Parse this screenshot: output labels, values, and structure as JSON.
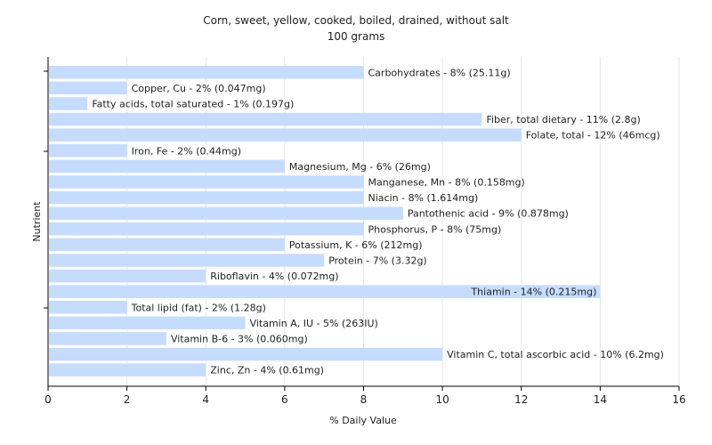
{
  "chart_data": {
    "type": "bar",
    "orientation": "horizontal",
    "title": "Corn, sweet, yellow, cooked, boiled, drained, without salt",
    "subtitle": "100 grams",
    "xlabel": "% Daily Value",
    "ylabel": "Nutrient",
    "xlim": [
      0,
      16
    ],
    "xticks": [
      0,
      2,
      4,
      6,
      8,
      10,
      12,
      14,
      16
    ],
    "grid": true,
    "bar_color": "#c6dcff",
    "categories": [
      "Carbohydrates",
      "Copper, Cu",
      "Fatty acids, total saturated",
      "Fiber, total dietary",
      "Folate, total",
      "Iron, Fe",
      "Magnesium, Mg",
      "Manganese, Mn",
      "Niacin",
      "Pantothenic acid",
      "Phosphorus, P",
      "Potassium, K",
      "Protein",
      "Riboflavin",
      "Thiamin",
      "Total lipid (fat)",
      "Vitamin A, IU",
      "Vitamin B-6",
      "Vitamin C, total ascorbic acid",
      "Zinc, Zn"
    ],
    "values": [
      8,
      2,
      1,
      11,
      12,
      2,
      6,
      8,
      8,
      9,
      8,
      6,
      7,
      4,
      14,
      2,
      5,
      3,
      10,
      4
    ],
    "labels": [
      "Carbohydrates - 8% (25.11g)",
      "Copper, Cu - 2% (0.047mg)",
      "Fatty acids, total saturated - 1% (0.197g)",
      "Fiber, total dietary - 11% (2.8g)",
      "Folate, total - 12% (46mcg)",
      "Iron, Fe - 2% (0.44mg)",
      "Magnesium, Mg - 6% (26mg)",
      "Manganese, Mn - 8% (0.158mg)",
      "Niacin - 8% (1.614mg)",
      "Pantothenic acid - 9% (0.878mg)",
      "Phosphorus, P - 8% (75mg)",
      "Potassium, K - 6% (212mg)",
      "Protein - 7% (3.32g)",
      "Riboflavin - 4% (0.072mg)",
      "Thiamin - 14% (0.215mg)",
      "Total lipid (fat) - 2% (1.28g)",
      "Vitamin A, IU - 5% (263IU)",
      "Vitamin B-6 - 3% (0.060mg)",
      "Vitamin C, total ascorbic acid - 10% (6.2mg)",
      "Zinc, Zn - 4% (0.61mg)"
    ]
  }
}
